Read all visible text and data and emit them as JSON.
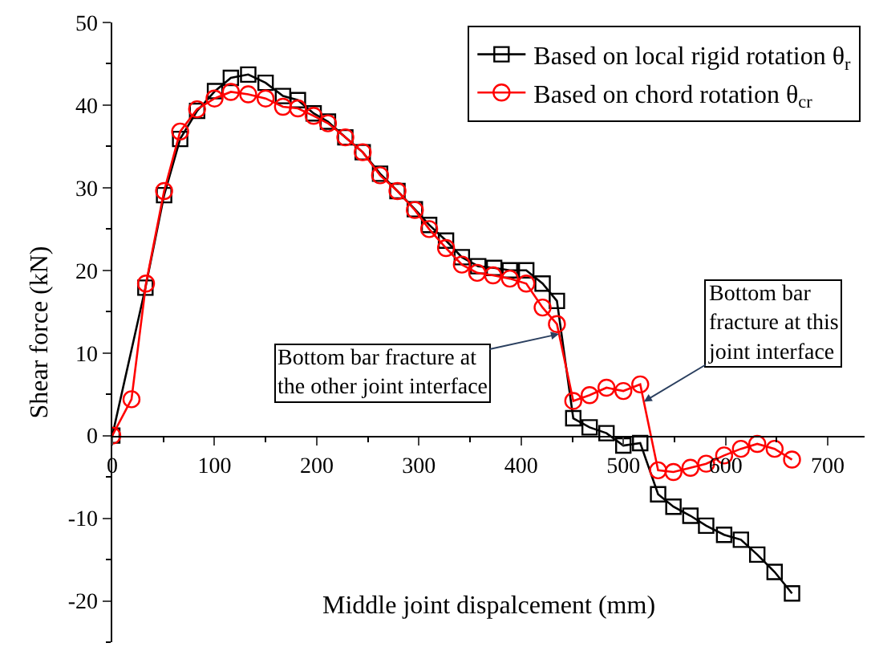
{
  "chart_data": {
    "type": "line",
    "xlabel": "Middle joint dispalcement (mm)",
    "ylabel": "Shear force (kN)",
    "xlim": [
      0,
      736
    ],
    "ylim": [
      -25,
      50
    ],
    "xticks": [
      0,
      100,
      200,
      300,
      400,
      500,
      600,
      700
    ],
    "yticks": [
      -20,
      -10,
      0,
      10,
      20,
      30,
      40,
      50
    ],
    "legend": "top right",
    "series": [
      {
        "name": "Based on local rigid rotation θ$_{r}$",
        "color": "#000000",
        "marker": "square",
        "x": [
          0,
          32.4,
          50.7,
          66.4,
          83,
          100.5,
          116,
          133,
          150,
          167,
          181.6,
          197,
          211,
          228,
          245,
          262,
          279,
          296,
          310,
          326.5,
          342,
          358,
          373.6,
          389,
          405,
          421,
          435,
          451,
          467,
          483.5,
          500,
          516.5,
          534,
          549,
          565.6,
          581,
          598.6,
          615,
          631,
          648,
          665
        ],
        "values": [
          0,
          17.9,
          29.1,
          35.9,
          39.3,
          41.7,
          43.3,
          43.7,
          42.7,
          41.1,
          40.6,
          39.0,
          38.0,
          36.1,
          34.3,
          31.7,
          29.6,
          27.4,
          25.5,
          23.6,
          21.6,
          20.5,
          20.3,
          20.0,
          20.0,
          18.4,
          16.3,
          2.1,
          1.0,
          0.3,
          -1.2,
          -0.9,
          -7.1,
          -8.6,
          -9.7,
          -10.9,
          -12.0,
          -12.6,
          -14.4,
          -16.5,
          -19.1
        ]
      },
      {
        "name": "Based on chord rotation θ$_{cr}$",
        "color": "#ff0000",
        "marker": "circle",
        "x": [
          0,
          18.8,
          33,
          50.7,
          66.4,
          83,
          100,
          116,
          133,
          150,
          167,
          181.6,
          197,
          211,
          228,
          245,
          262,
          279,
          296,
          310,
          326.5,
          342,
          357,
          372.5,
          389,
          405,
          421,
          435,
          451,
          467,
          483.5,
          500,
          516.5,
          534,
          549,
          565.6,
          581,
          598.6,
          615,
          631,
          648,
          665
        ],
        "values": [
          0,
          4.4,
          18.4,
          29.6,
          36.8,
          39.5,
          40.8,
          41.6,
          41.3,
          40.8,
          39.8,
          39.6,
          38.7,
          37.8,
          36.1,
          34.3,
          31.5,
          29.6,
          27.3,
          25.0,
          22.7,
          20.7,
          19.7,
          19.4,
          19.0,
          18.4,
          15.5,
          13.5,
          4.2,
          4.9,
          5.8,
          5.4,
          6.2,
          -4.2,
          -4.4,
          -3.9,
          -3.4,
          -2.4,
          -1.6,
          -1.0,
          -1.6,
          -2.9
        ]
      }
    ],
    "annotations": [
      {
        "text": "Bottom bar fracture at\nthe other joint interface",
        "x": 437,
        "y": 12.3
      },
      {
        "text": "Bottom bar\nfracture at this\njoint interface",
        "x": 520,
        "y": 4.1
      }
    ]
  }
}
